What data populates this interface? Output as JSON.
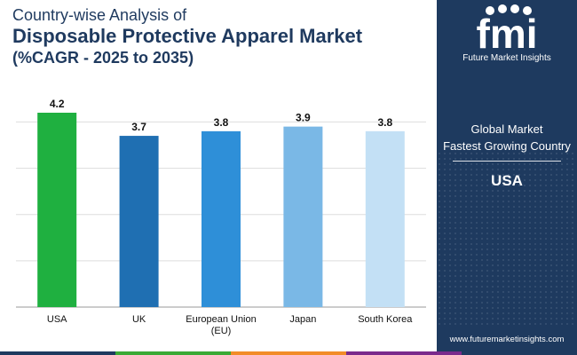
{
  "header": {
    "line1": "Country-wise Analysis of",
    "line2": "Disposable Protective Apparel Market",
    "line3": "(%CAGR - 2025 to 2035)"
  },
  "chart_data": {
    "type": "bar",
    "title": "Country-wise Analysis of Disposable Protective Apparel Market (%CAGR - 2025 to 2035)",
    "categories": [
      "USA",
      "UK",
      "European Union (EU)",
      "Japan",
      "South Korea"
    ],
    "category_lines": [
      [
        "USA"
      ],
      [
        "UK"
      ],
      [
        "European Union",
        "(EU)"
      ],
      [
        "Japan"
      ],
      [
        "South Korea"
      ]
    ],
    "values": [
      4.2,
      3.7,
      3.8,
      3.9,
      3.8
    ],
    "value_labels": [
      "4.2",
      "3.7",
      "3.8",
      "3.9",
      "3.8"
    ],
    "ylim": [
      0,
      4.2
    ],
    "grid": true,
    "bar_colors": [
      "#1fb040",
      "#1f6fb2",
      "#2e8fd8",
      "#7ab8e6",
      "#c3e0f5"
    ],
    "xlabel": "",
    "ylabel": ""
  },
  "sidebar": {
    "brand": "Future Market Insights",
    "label_line1": "Global Market",
    "label_line2": "Fastest Growing Country",
    "country": "USA",
    "website": "www.futuremarketinsights.com"
  },
  "colors": {
    "sidebar_bg": "#1e3a5f",
    "title": "#1f3a5f",
    "strip": [
      "#1e3a5f",
      "#3aaa35",
      "#f28c28",
      "#7a2a8c",
      "#1e3a5f"
    ]
  }
}
